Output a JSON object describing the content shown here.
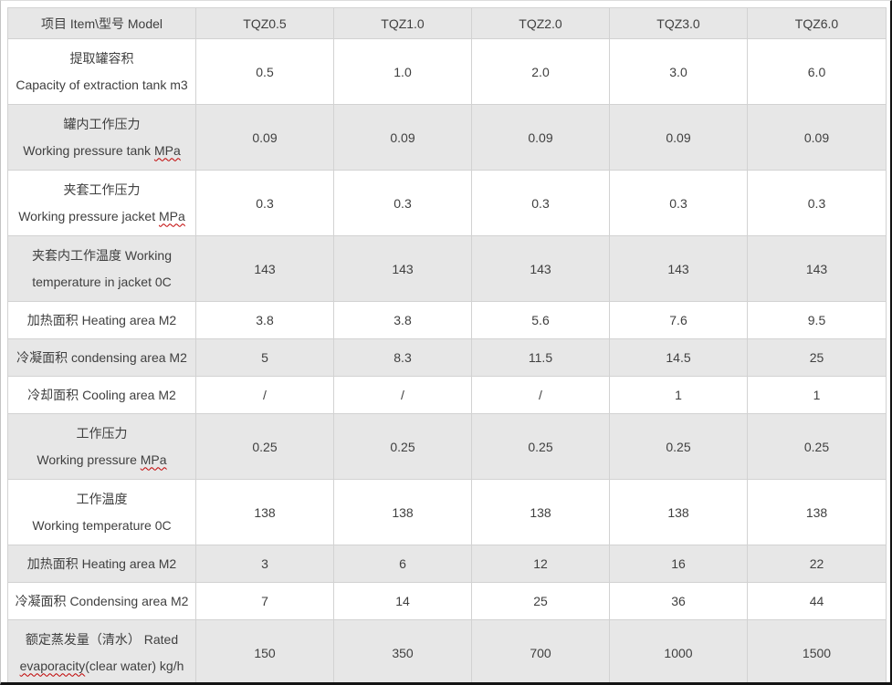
{
  "page": {
    "title": "TQZ extraction tank specification table"
  },
  "colors": {
    "shaded_row_bg": "#e7e7e7",
    "cell_border": "#d2d2d2",
    "text": "#3f3f3f",
    "misspelling_underline": "#c00000",
    "frame_dark": "#141414"
  },
  "table": {
    "header": {
      "item_label": "项目 Item\\型号 Model",
      "models": [
        "TQZ0.5",
        "TQZ1.0",
        "TQZ2.0",
        "TQZ3.0",
        "TQZ6.0"
      ]
    },
    "rows": [
      {
        "label_lines": [
          [
            {
              "text": "提取罐容积"
            }
          ],
          [
            {
              "text": "Capacity of extraction tank m3"
            }
          ]
        ],
        "values": [
          "0.5",
          "1.0",
          "2.0",
          "3.0",
          "6.0"
        ]
      },
      {
        "label_lines": [
          [
            {
              "text": "罐内工作压力"
            }
          ],
          [
            {
              "text": "Working pressure tank "
            },
            {
              "text": "MPa",
              "misspelled": true
            }
          ]
        ],
        "values": [
          "0.09",
          "0.09",
          "0.09",
          "0.09",
          "0.09"
        ]
      },
      {
        "label_lines": [
          [
            {
              "text": "夹套工作压力"
            }
          ],
          [
            {
              "text": "Working pressure jacket "
            },
            {
              "text": "MPa",
              "misspelled": true
            }
          ]
        ],
        "values": [
          "0.3",
          "0.3",
          "0.3",
          "0.3",
          "0.3"
        ]
      },
      {
        "label_lines": [
          [
            {
              "text": "夹套内工作温度  Working"
            }
          ],
          [
            {
              "text": "temperature in jacket 0C"
            }
          ]
        ],
        "values": [
          "143",
          "143",
          "143",
          "143",
          "143"
        ]
      },
      {
        "label_lines": [
          [
            {
              "text": "加热面积  Heating area M2"
            }
          ]
        ],
        "values": [
          "3.8",
          "3.8",
          "5.6",
          "7.6",
          "9.5"
        ]
      },
      {
        "label_lines": [
          [
            {
              "text": "冷凝面积  condensing area M2"
            }
          ]
        ],
        "values": [
          "5",
          "8.3",
          "11.5",
          "14.5",
          "25"
        ]
      },
      {
        "label_lines": [
          [
            {
              "text": "冷却面积  Cooling area M2"
            }
          ]
        ],
        "values": [
          "/",
          "/",
          "/",
          "1",
          "1"
        ]
      },
      {
        "label_lines": [
          [
            {
              "text": "工作压力"
            }
          ],
          [
            {
              "text": "Working pressure "
            },
            {
              "text": "MPa",
              "misspelled": true
            }
          ]
        ],
        "values": [
          "0.25",
          "0.25",
          "0.25",
          "0.25",
          "0.25"
        ]
      },
      {
        "label_lines": [
          [
            {
              "text": "工作温度"
            }
          ],
          [
            {
              "text": "Working temperature 0C"
            }
          ]
        ],
        "values": [
          "138",
          "138",
          "138",
          "138",
          "138"
        ]
      },
      {
        "label_lines": [
          [
            {
              "text": "加热面积  Heating area M2"
            }
          ]
        ],
        "values": [
          "3",
          "6",
          "12",
          "16",
          "22"
        ]
      },
      {
        "label_lines": [
          [
            {
              "text": "冷凝面积 Condensing area M2"
            }
          ]
        ],
        "values": [
          "7",
          "14",
          "25",
          "36",
          "44"
        ]
      },
      {
        "label_lines": [
          [
            {
              "text": "额定蒸发量（清水）  Rated"
            }
          ],
          [
            {
              "text": "evaporacity",
              "misspelled": true
            },
            {
              "text": "(clear water) kg/h"
            }
          ]
        ],
        "values": [
          "150",
          "350",
          "700",
          "1000",
          "1500"
        ]
      }
    ]
  }
}
